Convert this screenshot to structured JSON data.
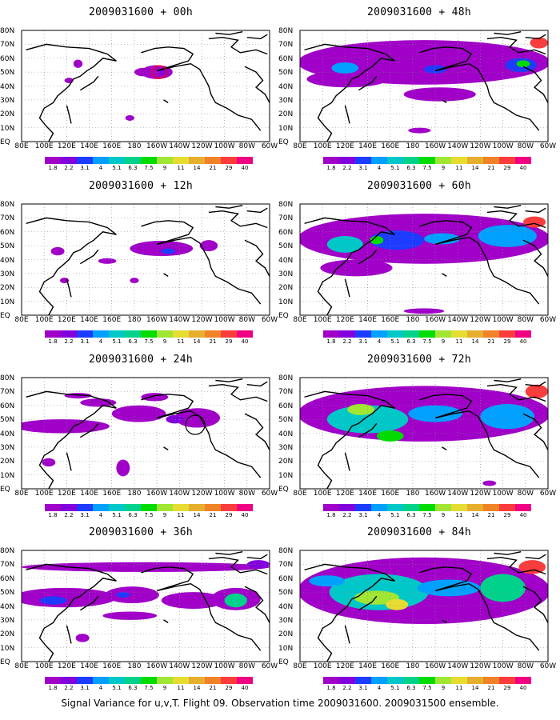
{
  "panels": [
    {
      "title": "2009031600 + 00h",
      "level": 0
    },
    {
      "title": "2009031600 + 12h",
      "level": 1
    },
    {
      "title": "2009031600 + 24h",
      "level": 2
    },
    {
      "title": "2009031600 + 36h",
      "level": 3
    },
    {
      "title": "2009031600 + 48h",
      "level": 4
    },
    {
      "title": "2009031600 + 60h",
      "level": 5
    },
    {
      "title": "2009031600 + 72h",
      "level": 6
    },
    {
      "title": "2009031600 + 84h",
      "level": 7
    }
  ],
  "lon_labels": [
    "80E",
    "100E",
    "120E",
    "140E",
    "160E",
    "180",
    "160W",
    "140W",
    "120W",
    "100W",
    "80W",
    "60W"
  ],
  "lat_labels": [
    "80N",
    "70N",
    "60N",
    "50N",
    "40N",
    "30N",
    "20N",
    "10N",
    "EQ"
  ],
  "colorbar": {
    "ticks": [
      "1.8",
      "2.2",
      "3.1",
      "4",
      "5.1",
      "6.3",
      "7.5",
      "9",
      "11",
      "14",
      "21",
      "29",
      "40"
    ],
    "colors": [
      "#a000c8",
      "#8200dc",
      "#1e3cff",
      "#00a0ff",
      "#00c8c8",
      "#00d28c",
      "#00dc00",
      "#a0e632",
      "#e6dc32",
      "#e6af2d",
      "#f08228",
      "#fa3c3c",
      "#f00082"
    ]
  },
  "footer": "Signal Variance for u,v,T. Flight 09. Observation time 2009031600. 2009031500 ensemble."
}
